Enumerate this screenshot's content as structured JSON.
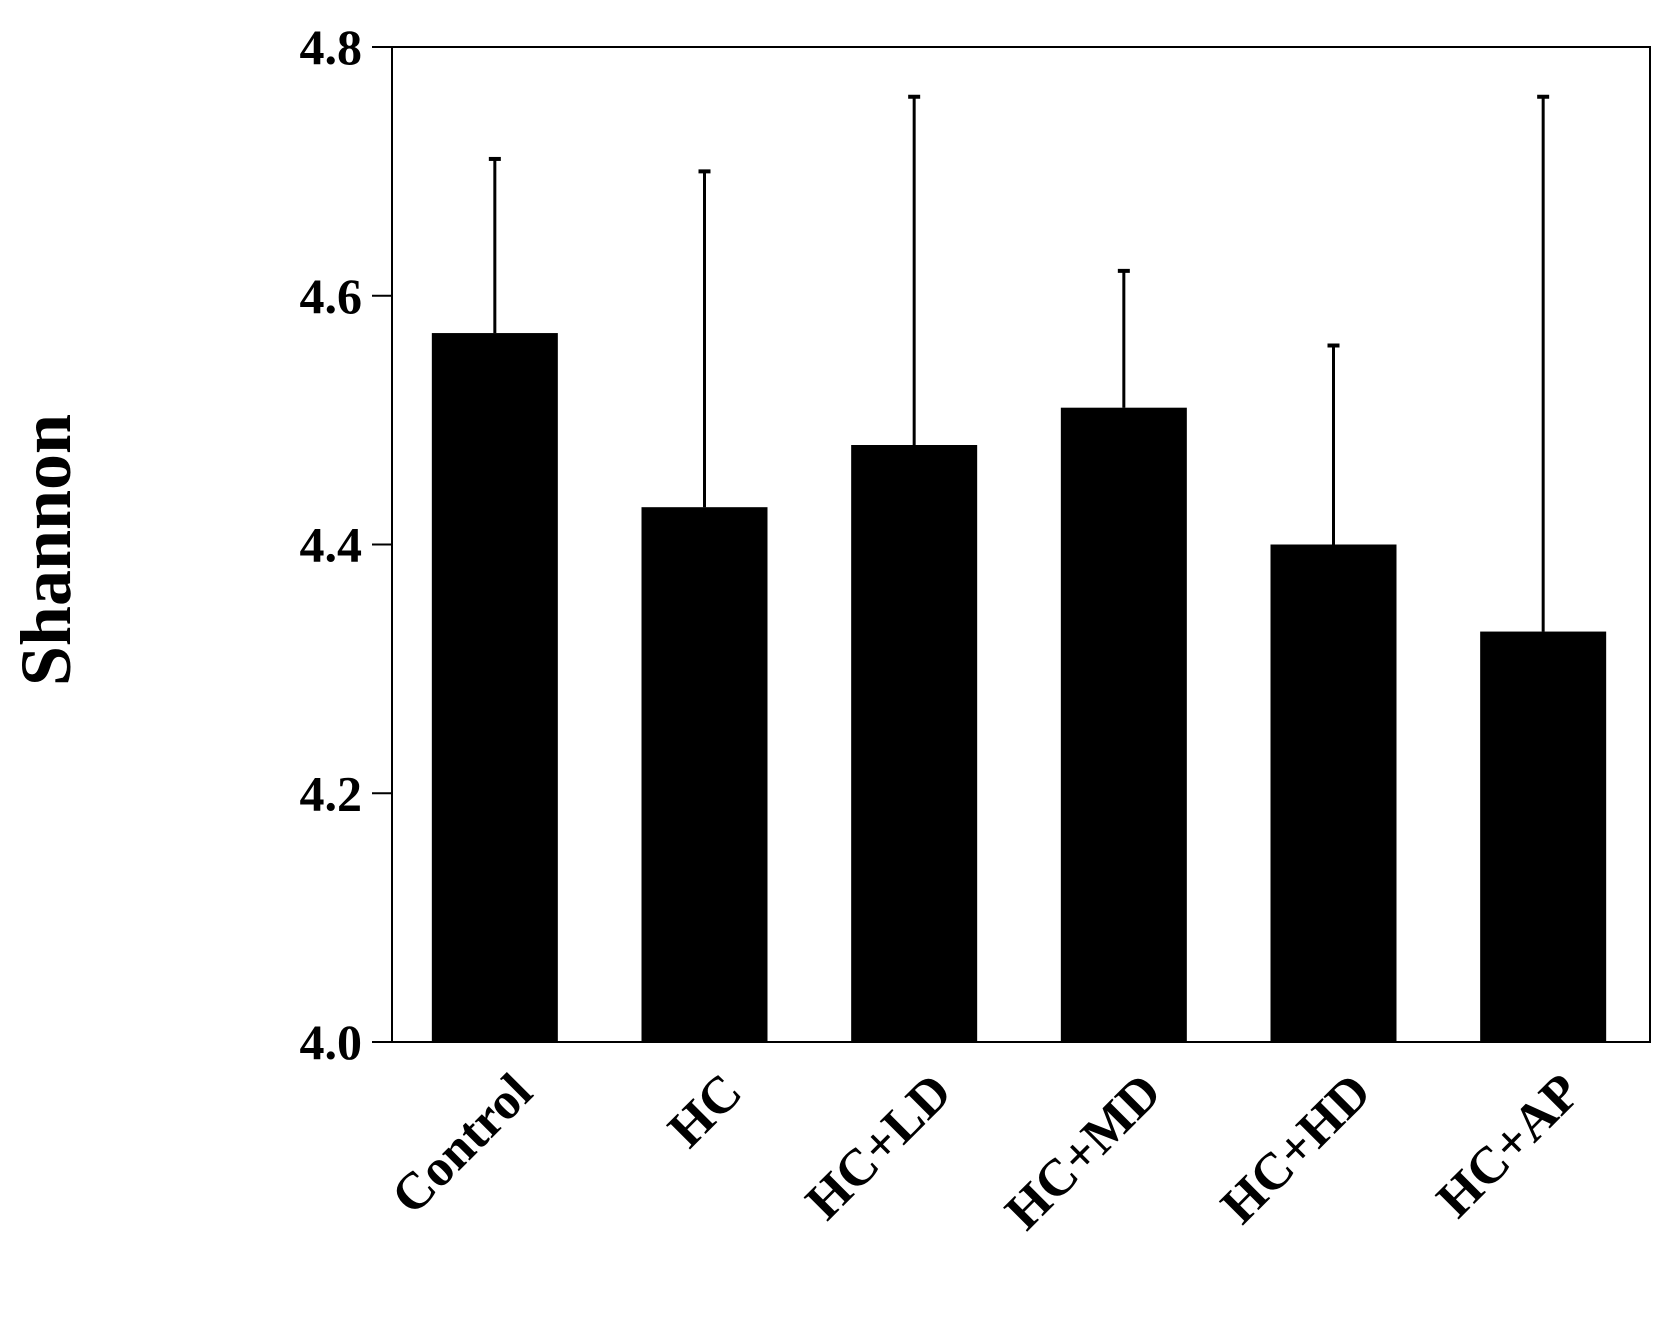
{
  "chart_data": {
    "type": "bar",
    "title": "",
    "xlabel": "",
    "ylabel": "Shannon",
    "ylim": [
      4.0,
      4.8
    ],
    "yticks": [
      "4.0",
      "4.2",
      "4.4",
      "4.6",
      "4.8"
    ],
    "categories": [
      "Control",
      "HC",
      "HC+LD",
      "HC+MD",
      "HC+HD",
      "HC+AP"
    ],
    "values": [
      4.57,
      4.43,
      4.48,
      4.51,
      4.4,
      4.33
    ],
    "error_upper": [
      4.71,
      4.7,
      4.76,
      4.62,
      4.56,
      4.76
    ],
    "bar_color": "#000000",
    "grid": false,
    "legend": "none"
  }
}
